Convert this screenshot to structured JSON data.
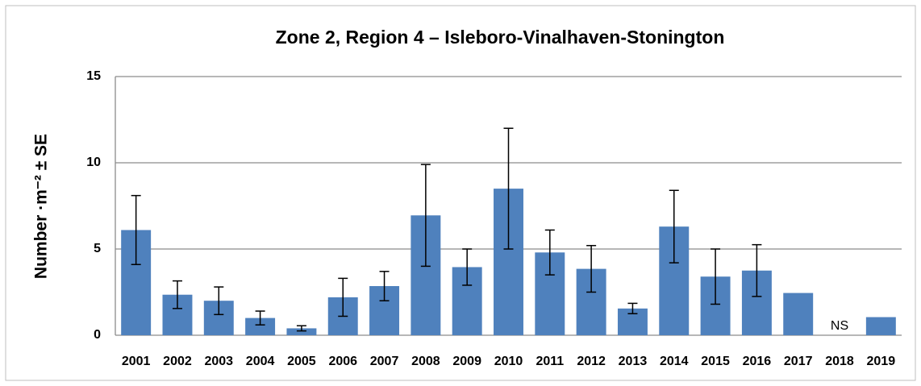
{
  "chart_data": {
    "type": "bar",
    "title": "Zone 2, Region 4 – Isleboro-Vinalhaven-Stonington",
    "y_label": "Number ·m⁻² ± SE",
    "categories": [
      "2001",
      "2002",
      "2003",
      "2004",
      "2005",
      "2006",
      "2007",
      "2008",
      "2009",
      "2010",
      "2011",
      "2012",
      "2013",
      "2014",
      "2015",
      "2016",
      "2017",
      "2018",
      "2019"
    ],
    "values": [
      6.1,
      2.35,
      2.0,
      1.0,
      0.4,
      2.2,
      2.85,
      6.95,
      3.95,
      8.5,
      4.8,
      3.85,
      1.55,
      6.3,
      3.4,
      3.75,
      2.45,
      null,
      1.05
    ],
    "errors": [
      2.0,
      0.8,
      0.8,
      0.4,
      0.15,
      1.1,
      0.85,
      2.95,
      1.05,
      3.5,
      1.3,
      1.35,
      0.3,
      2.1,
      1.6,
      1.5,
      null,
      null,
      null
    ],
    "annotations": [
      {
        "text": "NS",
        "category": "2018"
      }
    ],
    "color": "#4f81bd",
    "ylim": [
      0,
      15
    ],
    "yticks": [
      0,
      5,
      10,
      15
    ],
    "grid": true
  }
}
